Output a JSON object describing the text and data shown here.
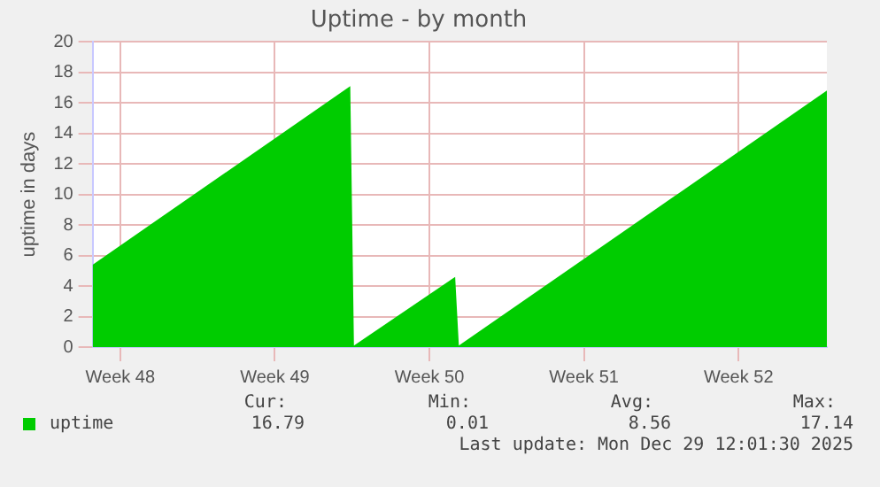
{
  "chart_data": {
    "type": "area",
    "title": "Uptime - by month",
    "ylabel": "uptime in days",
    "x": [
      "2025-11-26T06:00",
      "2025-12-07T22:00",
      "2025-12-08T02:00",
      "2025-12-12T16:00",
      "2025-12-12T20:00",
      "2025-12-29T12:00"
    ],
    "series": [
      {
        "name": "uptime",
        "color": "#00cc00",
        "values": [
          5.4,
          17.1,
          0.1,
          4.6,
          0.1,
          16.8
        ]
      }
    ],
    "xlim": [
      "2025-11-26T06:00",
      "2025-12-29T12:00"
    ],
    "xticks": [
      {
        "value": "2025-11-27T12:00",
        "label": "Week 48"
      },
      {
        "value": "2025-12-04T12:00",
        "label": "Week 49"
      },
      {
        "value": "2025-12-11T12:00",
        "label": "Week 50"
      },
      {
        "value": "2025-12-18T12:00",
        "label": "Week 51"
      },
      {
        "value": "2025-12-25T12:00",
        "label": "Week 52"
      }
    ],
    "ylim": [
      0,
      20
    ],
    "yticks": [
      0,
      2,
      4,
      6,
      8,
      10,
      12,
      14,
      16,
      18,
      20
    ],
    "grid": true,
    "legend": "bottom left",
    "annotations": [
      "Cur:",
      "Min:",
      "Avg:",
      "Max:",
      "16.79",
      "0.01",
      "8.56",
      "17.14",
      "Last update: Mon Dec 29 12:01:30 2025"
    ]
  }
}
